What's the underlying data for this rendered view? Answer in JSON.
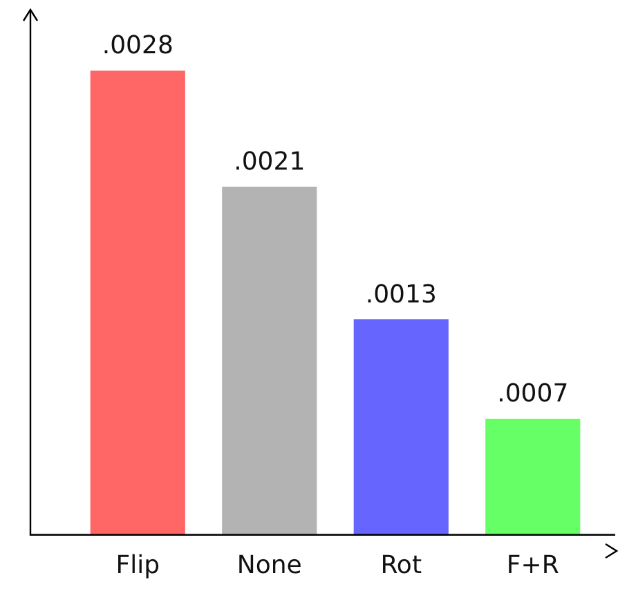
{
  "chart_data": {
    "type": "bar",
    "categories": [
      "Flip",
      "None",
      "Rot",
      "F+R"
    ],
    "values": [
      0.0028,
      0.0021,
      0.0013,
      0.0007
    ],
    "colors": [
      "#ff6666",
      "#b3b3b3",
      "#6666ff",
      "#66ff66"
    ],
    "value_labels": [
      ".0028",
      ".0021",
      ".0013",
      ".0007"
    ],
    "grid": false,
    "legend": false
  }
}
